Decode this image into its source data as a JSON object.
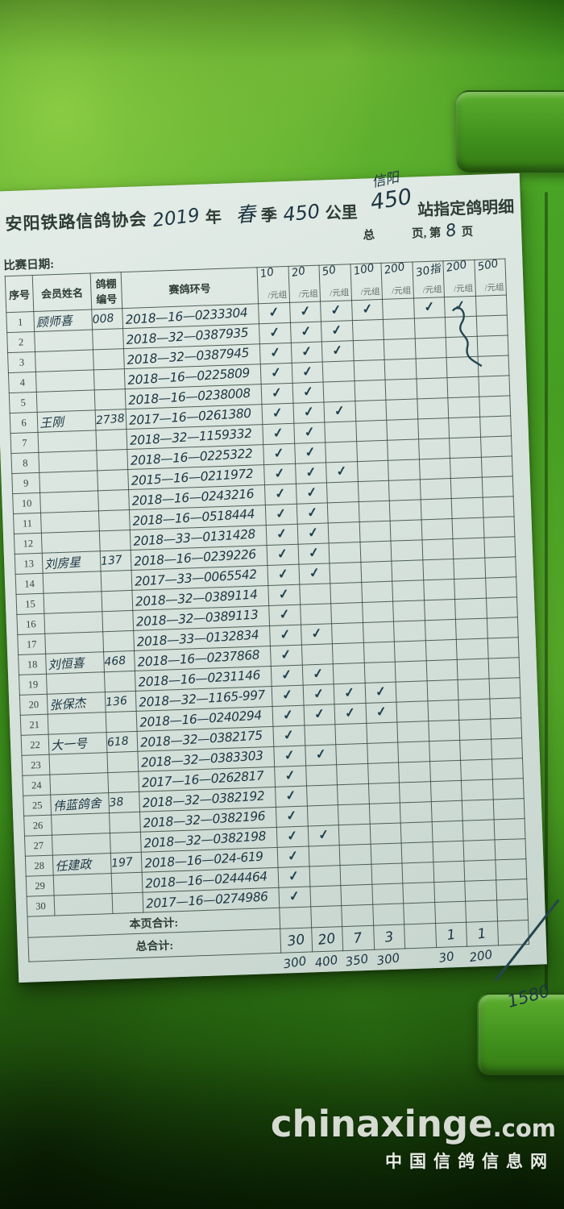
{
  "photo": {
    "case_color": "#3f941e",
    "ink_color": "#1d3642",
    "watermark": {
      "site": "chinaxinge",
      "tld": ".com",
      "caption": "中国信鸽信息网"
    }
  },
  "form": {
    "title": {
      "org": "安阳铁路信鸽协会",
      "year_hw": "2019",
      "year_suffix": "年",
      "season_hw": "春",
      "season_suffix": "季",
      "distance_hw": "450",
      "distance_suffix": "公里",
      "station_note_hw": "信阳",
      "station_hw": "450",
      "station_suffix": "站指定鸽明细"
    },
    "page_line": {
      "total_label": "总",
      "pages_label": "页, 第",
      "page_number_hw": "8",
      "page_suffix": "页"
    },
    "race_date_label": "比赛日期:",
    "table": {
      "col_headers": {
        "seq": "序号",
        "member": "会员姓名",
        "loft": "鸽棚编号",
        "ring": "赛鸽环号"
      },
      "fee_columns": [
        {
          "amount_hw": "10",
          "unit": "/元组"
        },
        {
          "amount_hw": "20",
          "unit": "/元组"
        },
        {
          "amount_hw": "50",
          "unit": "/元组"
        },
        {
          "amount_hw": "100",
          "unit": "/元组"
        },
        {
          "amount_hw": "200",
          "unit": "/元组"
        },
        {
          "amount_hw": "30指",
          "unit": "/元组"
        },
        {
          "amount_hw": "200",
          "unit": "/元组"
        },
        {
          "amount_hw": "500",
          "unit": "/元组"
        }
      ],
      "check_mark": "✓",
      "rows": [
        {
          "seq": "1",
          "name": "顾师喜",
          "loft": "008",
          "ring": "2018—16—0233304",
          "checks": [
            1,
            1,
            1,
            1,
            0,
            1,
            1,
            0
          ]
        },
        {
          "seq": "2",
          "name": "",
          "loft": "",
          "ring": "2018—32—0387935",
          "checks": [
            1,
            1,
            1,
            0,
            0,
            0,
            0,
            0
          ]
        },
        {
          "seq": "3",
          "name": "",
          "loft": "",
          "ring": "2018—32—0387945",
          "checks": [
            1,
            1,
            1,
            0,
            0,
            0,
            0,
            0
          ]
        },
        {
          "seq": "4",
          "name": "",
          "loft": "",
          "ring": "2018—16—0225809",
          "checks": [
            1,
            1,
            0,
            0,
            0,
            0,
            0,
            0
          ]
        },
        {
          "seq": "5",
          "name": "",
          "loft": "",
          "ring": "2018—16—0238008",
          "checks": [
            1,
            1,
            0,
            0,
            0,
            0,
            0,
            0
          ]
        },
        {
          "seq": "6",
          "name": "王刚",
          "loft": "2738",
          "ring": "2017—16—0261380",
          "checks": [
            1,
            1,
            1,
            0,
            0,
            0,
            0,
            0
          ]
        },
        {
          "seq": "7",
          "name": "",
          "loft": "",
          "ring": "2018—32—1159332",
          "checks": [
            1,
            1,
            0,
            0,
            0,
            0,
            0,
            0
          ]
        },
        {
          "seq": "8",
          "name": "",
          "loft": "",
          "ring": "2018—16—0225322",
          "checks": [
            1,
            1,
            0,
            0,
            0,
            0,
            0,
            0
          ]
        },
        {
          "seq": "9",
          "name": "",
          "loft": "",
          "ring": "2015—16—0211972",
          "checks": [
            1,
            1,
            1,
            0,
            0,
            0,
            0,
            0
          ]
        },
        {
          "seq": "10",
          "name": "",
          "loft": "",
          "ring": "2018—16—0243216",
          "checks": [
            1,
            1,
            0,
            0,
            0,
            0,
            0,
            0
          ]
        },
        {
          "seq": "11",
          "name": "",
          "loft": "",
          "ring": "2018—16—0518444",
          "checks": [
            1,
            1,
            0,
            0,
            0,
            0,
            0,
            0
          ]
        },
        {
          "seq": "12",
          "name": "",
          "loft": "",
          "ring": "2018—33—0131428",
          "checks": [
            1,
            1,
            0,
            0,
            0,
            0,
            0,
            0
          ]
        },
        {
          "seq": "13",
          "name": "刘房星",
          "loft": "137",
          "ring": "2018—16—0239226",
          "checks": [
            1,
            1,
            0,
            0,
            0,
            0,
            0,
            0
          ]
        },
        {
          "seq": "14",
          "name": "",
          "loft": "",
          "ring": "2017—33—0065542",
          "checks": [
            1,
            1,
            0,
            0,
            0,
            0,
            0,
            0
          ]
        },
        {
          "seq": "15",
          "name": "",
          "loft": "",
          "ring": "2018—32—0389114",
          "checks": [
            1,
            0,
            0,
            0,
            0,
            0,
            0,
            0
          ]
        },
        {
          "seq": "16",
          "name": "",
          "loft": "",
          "ring": "2018—32—0389113",
          "checks": [
            1,
            0,
            0,
            0,
            0,
            0,
            0,
            0
          ]
        },
        {
          "seq": "17",
          "name": "",
          "loft": "",
          "ring": "2018—33—0132834",
          "checks": [
            1,
            1,
            0,
            0,
            0,
            0,
            0,
            0
          ]
        },
        {
          "seq": "18",
          "name": "刘恒喜",
          "loft": "468",
          "ring": "2018—16—0237868",
          "checks": [
            1,
            0,
            0,
            0,
            0,
            0,
            0,
            0
          ]
        },
        {
          "seq": "19",
          "name": "",
          "loft": "",
          "ring": "2018—16—0231146",
          "checks": [
            1,
            1,
            0,
            0,
            0,
            0,
            0,
            0
          ]
        },
        {
          "seq": "20",
          "name": "张保杰",
          "loft": "136",
          "ring": "2018—32—1165-997",
          "checks": [
            1,
            1,
            1,
            1,
            0,
            0,
            0,
            0
          ]
        },
        {
          "seq": "21",
          "name": "",
          "loft": "",
          "ring": "2018—16—0240294",
          "checks": [
            1,
            1,
            1,
            1,
            0,
            0,
            0,
            0
          ]
        },
        {
          "seq": "22",
          "name": "大一号",
          "loft": "618",
          "ring": "2018—32—0382175",
          "checks": [
            1,
            0,
            0,
            0,
            0,
            0,
            0,
            0
          ]
        },
        {
          "seq": "23",
          "name": "",
          "loft": "",
          "ring": "2018—32—0383303",
          "checks": [
            1,
            1,
            0,
            0,
            0,
            0,
            0,
            0
          ]
        },
        {
          "seq": "24",
          "name": "",
          "loft": "",
          "ring": "2017—16—0262817",
          "checks": [
            1,
            0,
            0,
            0,
            0,
            0,
            0,
            0
          ]
        },
        {
          "seq": "25",
          "name": "伟蓝鸽舍",
          "loft": "38",
          "ring": "2018—32—0382192",
          "checks": [
            1,
            0,
            0,
            0,
            0,
            0,
            0,
            0
          ]
        },
        {
          "seq": "26",
          "name": "",
          "loft": "",
          "ring": "2018—32—0382196",
          "checks": [
            1,
            0,
            0,
            0,
            0,
            0,
            0,
            0
          ]
        },
        {
          "seq": "27",
          "name": "",
          "loft": "",
          "ring": "2018—32—0382198",
          "checks": [
            1,
            1,
            0,
            0,
            0,
            0,
            0,
            0
          ]
        },
        {
          "seq": "28",
          "name": "任建政",
          "loft": "197",
          "ring": "2018—16—024-619",
          "checks": [
            1,
            0,
            0,
            0,
            0,
            0,
            0,
            0
          ]
        },
        {
          "seq": "29",
          "name": "",
          "loft": "",
          "ring": "2018—16—0244464",
          "checks": [
            1,
            0,
            0,
            0,
            0,
            0,
            0,
            0
          ]
        },
        {
          "seq": "30",
          "name": "",
          "loft": "",
          "ring": "2017—16—0274986",
          "checks": [
            1,
            0,
            0,
            0,
            0,
            0,
            0,
            0
          ]
        }
      ]
    },
    "footer": {
      "page_total_label": "本页合计:",
      "grand_total_label": "总合计:",
      "grand_totals_hw": [
        "30",
        "20",
        "7",
        "3",
        "",
        "1",
        "1",
        ""
      ],
      "money_totals_hw": [
        "300",
        "400",
        "350",
        "300",
        "",
        "30",
        "200",
        ""
      ],
      "final_total_hw": "1580"
    }
  }
}
